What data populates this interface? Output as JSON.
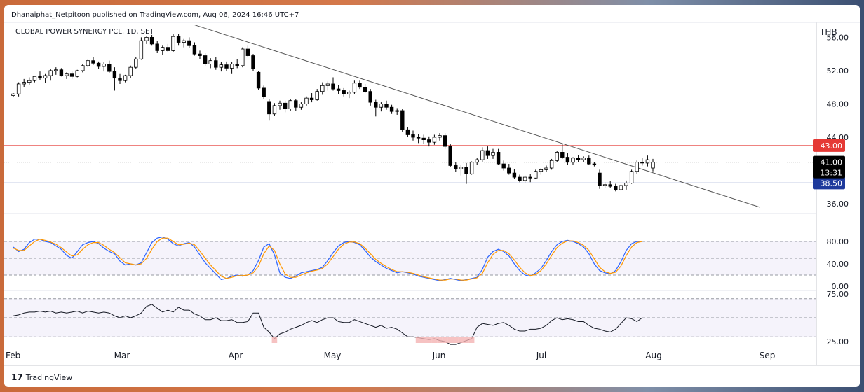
{
  "header": {
    "publisher": "Dhanaiphat_Netpitoon published on TradingView.com, Aug 06, 2024 16:46 UTC+7",
    "symbol": "GLOBAL POWER SYNERGY PCL, 1D, SET",
    "currency": "THB"
  },
  "footer": {
    "brand": "TradingView",
    "logo_icon": "tradingview-logo-icon"
  },
  "colors": {
    "resistance": "#e53935",
    "support": "#1e3a9c",
    "trendline": "#555555",
    "stoch_k": "#2962ff",
    "stoch_d": "#ff9800",
    "rsi": "#131722",
    "band_fill": "#ede9f7"
  },
  "chart_data": [
    {
      "type": "candlestick",
      "title": "GLOBAL POWER SYNERGY PCL, 1D, SET",
      "ylabel": "THB",
      "x_labels": [
        "Feb",
        "Mar",
        "Apr",
        "May",
        "Jun",
        "Jul",
        "Aug",
        "Sep"
      ],
      "ylim": [
        35.0,
        57.8
      ],
      "y_ticks": [
        "56.00",
        "52.00",
        "48.00",
        "44.00",
        "36.00"
      ],
      "levels": [
        {
          "label": "43.00",
          "value": 43.0,
          "color": "#e53935"
        },
        {
          "label": "38.50",
          "value": 38.5,
          "color": "#1e3a9c"
        }
      ],
      "last_price": {
        "value": 41.0,
        "label": "41.00",
        "countdown": "13:31"
      },
      "trendline": {
        "start": {
          "bar": 34,
          "price": 57.5
        },
        "end": {
          "bar": 140,
          "price": 35.6
        }
      },
      "ohlc": [
        [
          49.0,
          49.3,
          48.8,
          49.2
        ],
        [
          49.2,
          50.6,
          48.9,
          50.4
        ],
        [
          50.4,
          51.0,
          50.0,
          50.6
        ],
        [
          50.6,
          51.2,
          50.3,
          50.8
        ],
        [
          50.8,
          51.4,
          50.6,
          51.3
        ],
        [
          51.3,
          51.9,
          50.9,
          51.1
        ],
        [
          51.1,
          51.6,
          50.5,
          51.4
        ],
        [
          51.4,
          52.2,
          50.8,
          52.0
        ],
        [
          52.0,
          52.4,
          51.5,
          52.1
        ],
        [
          52.1,
          52.3,
          51.3,
          51.4
        ],
        [
          51.4,
          51.8,
          51.0,
          51.6
        ],
        [
          51.6,
          51.9,
          51.0,
          51.3
        ],
        [
          51.3,
          52.1,
          51.2,
          52.0
        ],
        [
          52.0,
          52.8,
          51.8,
          52.6
        ],
        [
          52.6,
          53.4,
          52.4,
          53.2
        ],
        [
          53.2,
          53.6,
          52.7,
          52.9
        ],
        [
          52.9,
          53.1,
          52.2,
          52.5
        ],
        [
          52.5,
          53.0,
          51.9,
          52.8
        ],
        [
          52.8,
          53.2,
          51.7,
          51.9
        ],
        [
          51.9,
          52.4,
          49.6,
          51.1
        ],
        [
          51.1,
          51.6,
          50.4,
          50.8
        ],
        [
          50.8,
          51.5,
          50.6,
          51.4
        ],
        [
          51.4,
          52.6,
          51.1,
          52.4
        ],
        [
          52.4,
          53.6,
          52.2,
          53.4
        ],
        [
          53.4,
          56.0,
          53.3,
          55.6
        ],
        [
          55.6,
          56.1,
          55.2,
          56.0
        ],
        [
          56.0,
          56.3,
          55.0,
          55.2
        ],
        [
          55.2,
          55.6,
          54.1,
          54.4
        ],
        [
          54.4,
          55.0,
          53.9,
          54.8
        ],
        [
          54.8,
          55.2,
          54.2,
          54.4
        ],
        [
          54.4,
          56.4,
          54.2,
          56.1
        ],
        [
          56.1,
          56.4,
          55.0,
          55.4
        ],
        [
          55.4,
          55.8,
          54.8,
          55.6
        ],
        [
          55.6,
          56.0,
          54.7,
          55.0
        ],
        [
          55.0,
          55.4,
          53.8,
          54.0
        ],
        [
          54.0,
          54.4,
          53.4,
          53.8
        ],
        [
          53.8,
          54.1,
          52.6,
          52.8
        ],
        [
          52.8,
          53.5,
          52.3,
          53.2
        ],
        [
          53.2,
          53.6,
          52.1,
          52.4
        ],
        [
          52.4,
          53.0,
          51.9,
          52.7
        ],
        [
          52.7,
          53.1,
          52.0,
          52.3
        ],
        [
          52.3,
          53.0,
          51.6,
          52.8
        ],
        [
          52.8,
          53.4,
          52.3,
          52.6
        ],
        [
          52.6,
          54.8,
          52.4,
          54.6
        ],
        [
          54.6,
          55.0,
          53.6,
          53.8
        ],
        [
          53.8,
          54.0,
          52.0,
          52.2
        ],
        [
          51.8,
          52.0,
          49.7,
          49.9
        ],
        [
          49.9,
          50.2,
          48.6,
          48.9
        ],
        [
          48.3,
          48.6,
          46.0,
          46.8
        ],
        [
          46.8,
          48.1,
          46.6,
          47.8
        ],
        [
          47.8,
          48.4,
          47.3,
          48.1
        ],
        [
          48.1,
          48.4,
          47.0,
          47.4
        ],
        [
          47.4,
          48.6,
          47.2,
          48.4
        ],
        [
          48.4,
          48.6,
          47.2,
          47.6
        ],
        [
          47.6,
          48.2,
          47.3,
          48.0
        ],
        [
          48.0,
          48.9,
          47.8,
          48.7
        ],
        [
          48.7,
          49.3,
          48.2,
          48.5
        ],
        [
          48.5,
          49.8,
          48.4,
          49.5
        ],
        [
          49.5,
          50.6,
          49.1,
          50.2
        ],
        [
          50.2,
          50.7,
          49.6,
          50.4
        ],
        [
          50.4,
          51.2,
          49.6,
          49.8
        ],
        [
          49.8,
          50.3,
          49.2,
          49.6
        ],
        [
          49.6,
          49.9,
          48.9,
          49.2
        ],
        [
          49.2,
          49.6,
          48.7,
          49.4
        ],
        [
          49.4,
          50.8,
          49.2,
          50.5
        ],
        [
          50.5,
          50.8,
          49.8,
          50.0
        ],
        [
          50.0,
          50.4,
          49.3,
          49.5
        ],
        [
          49.5,
          49.8,
          47.8,
          48.2
        ],
        [
          48.2,
          48.5,
          46.5,
          47.6
        ],
        [
          47.6,
          48.2,
          47.1,
          48.0
        ],
        [
          48.0,
          48.4,
          47.3,
          47.6
        ],
        [
          47.6,
          47.9,
          46.8,
          47.1
        ],
        [
          47.1,
          47.5,
          46.7,
          47.2
        ],
        [
          47.2,
          47.4,
          44.6,
          44.9
        ],
        [
          44.9,
          45.2,
          44.0,
          44.3
        ],
        [
          44.3,
          44.8,
          43.6,
          44.0
        ],
        [
          44.0,
          44.4,
          43.3,
          43.9
        ],
        [
          43.9,
          44.3,
          43.2,
          43.7
        ],
        [
          43.7,
          44.1,
          42.9,
          43.4
        ],
        [
          43.4,
          44.3,
          43.1,
          44.0
        ],
        [
          44.0,
          44.5,
          43.6,
          44.2
        ],
        [
          44.2,
          44.5,
          42.6,
          42.9
        ],
        [
          42.9,
          43.2,
          40.4,
          40.6
        ],
        [
          40.6,
          41.0,
          39.8,
          40.2
        ],
        [
          40.2,
          40.7,
          39.4,
          40.4
        ],
        [
          40.4,
          40.9,
          38.4,
          39.6
        ],
        [
          39.6,
          41.1,
          39.5,
          41.0
        ],
        [
          41.0,
          41.5,
          40.7,
          41.3
        ],
        [
          41.3,
          42.8,
          41.0,
          42.4
        ],
        [
          42.4,
          42.9,
          41.4,
          41.8
        ],
        [
          41.8,
          42.6,
          41.4,
          42.2
        ],
        [
          42.2,
          42.6,
          40.7,
          40.8
        ],
        [
          40.8,
          41.2,
          40.0,
          40.3
        ],
        [
          40.3,
          40.8,
          39.5,
          39.7
        ],
        [
          39.7,
          40.2,
          39.0,
          39.2
        ],
        [
          39.2,
          39.5,
          38.6,
          38.8
        ],
        [
          38.8,
          39.4,
          38.5,
          39.2
        ],
        [
          39.2,
          39.6,
          38.6,
          39.1
        ],
        [
          39.1,
          40.1,
          39.0,
          39.9
        ],
        [
          39.9,
          40.3,
          39.5,
          40.1
        ],
        [
          40.1,
          40.6,
          39.8,
          40.3
        ],
        [
          40.3,
          41.4,
          40.1,
          41.2
        ],
        [
          41.2,
          42.4,
          41.0,
          42.2
        ],
        [
          42.2,
          43.2,
          41.4,
          41.6
        ],
        [
          41.6,
          42.1,
          40.7,
          41.0
        ],
        [
          41.0,
          41.6,
          40.7,
          41.5
        ],
        [
          41.5,
          41.9,
          41.0,
          41.3
        ],
        [
          41.3,
          41.7,
          41.0,
          41.5
        ],
        [
          41.5,
          41.8,
          40.7,
          40.8
        ],
        [
          40.8,
          41.0,
          40.5,
          40.7
        ],
        [
          39.7,
          40.1,
          37.8,
          38.2
        ],
        [
          38.2,
          38.6,
          37.9,
          38.3
        ],
        [
          38.3,
          38.7,
          37.9,
          38.1
        ],
        [
          38.1,
          38.4,
          37.5,
          37.7
        ],
        [
          37.7,
          38.3,
          37.6,
          38.2
        ],
        [
          38.2,
          38.8,
          37.7,
          38.5
        ],
        [
          38.5,
          40.1,
          38.4,
          39.9
        ],
        [
          39.9,
          41.2,
          39.6,
          41.0
        ],
        [
          41.0,
          41.5,
          40.6,
          40.9
        ],
        [
          40.9,
          41.8,
          40.5,
          41.3
        ],
        [
          40.3,
          41.4,
          39.9,
          41.0
        ]
      ],
      "gaps": [
        [
          45,
          46
        ],
        [
          47,
          48
        ],
        [
          110,
          111
        ],
        [
          121,
          122
        ]
      ]
    },
    {
      "type": "line",
      "indicator": "stochastic",
      "y_ticks": [
        "80.00",
        "40.00",
        "0.00"
      ],
      "ylim": [
        0,
        100
      ],
      "bands": {
        "upper": 80,
        "middle": 50,
        "lower": 20
      },
      "series": [
        {
          "role": "k",
          "values": [
            70,
            62,
            66,
            78,
            84,
            84,
            80,
            78,
            72,
            66,
            55,
            50,
            62,
            74,
            78,
            80,
            76,
            68,
            62,
            58,
            45,
            38,
            40,
            38,
            42,
            60,
            78,
            86,
            88,
            84,
            76,
            72,
            76,
            78,
            70,
            56,
            42,
            32,
            22,
            12,
            14,
            18,
            20,
            18,
            20,
            28,
            46,
            70,
            76,
            56,
            24,
            16,
            14,
            18,
            24,
            26,
            28,
            30,
            34,
            46,
            60,
            72,
            78,
            80,
            78,
            74,
            64,
            52,
            44,
            38,
            32,
            28,
            24,
            26,
            24,
            22,
            18,
            16,
            14,
            12,
            10,
            12,
            14,
            12,
            10,
            12,
            14,
            16,
            30,
            52,
            62,
            66,
            62,
            54,
            40,
            28,
            20,
            18,
            24,
            32,
            46,
            62,
            74,
            80,
            82,
            80,
            76,
            70,
            58,
            40,
            28,
            24,
            22,
            28,
            44,
            64,
            76,
            80,
            80
          ]
        },
        {
          "role": "d",
          "values": [
            68,
            64,
            64,
            72,
            80,
            84,
            82,
            79,
            75,
            69,
            61,
            54,
            56,
            66,
            74,
            78,
            78,
            73,
            66,
            60,
            51,
            42,
            40,
            38,
            40,
            50,
            66,
            80,
            86,
            86,
            80,
            74,
            75,
            77,
            74,
            63,
            50,
            38,
            28,
            18,
            14,
            16,
            19,
            19,
            20,
            24,
            36,
            58,
            72,
            64,
            40,
            22,
            16,
            16,
            20,
            24,
            27,
            29,
            32,
            40,
            53,
            66,
            75,
            79,
            79,
            76,
            68,
            58,
            48,
            41,
            35,
            30,
            26,
            26,
            25,
            23,
            20,
            17,
            15,
            13,
            11,
            11,
            13,
            13,
            11,
            11,
            13,
            15,
            23,
            42,
            57,
            64,
            64,
            58,
            47,
            34,
            24,
            19,
            21,
            28,
            40,
            55,
            69,
            77,
            81,
            81,
            78,
            73,
            64,
            49,
            34,
            26,
            23,
            25,
            36,
            55,
            70,
            78,
            80
          ]
        }
      ]
    },
    {
      "type": "line",
      "indicator": "rsi",
      "y_ticks": [
        "75.00",
        "25.00"
      ],
      "ylim": [
        25,
        75
      ],
      "bands": {
        "upper": 70,
        "middle": 50,
        "lower": 30
      },
      "series": [
        {
          "role": "rsi",
          "values": [
            52,
            53,
            55,
            56,
            56,
            57,
            56,
            57,
            55,
            56,
            55,
            56,
            57,
            55,
            57,
            56,
            55,
            56,
            55,
            52,
            50,
            52,
            50,
            52,
            55,
            62,
            64,
            60,
            56,
            58,
            56,
            61,
            58,
            58,
            54,
            52,
            48,
            48,
            50,
            47,
            47,
            48,
            45,
            45,
            46,
            55,
            55,
            40,
            35,
            28,
            33,
            35,
            38,
            40,
            42,
            45,
            47,
            45,
            48,
            50,
            50,
            46,
            45,
            45,
            48,
            46,
            44,
            42,
            40,
            42,
            39,
            40,
            38,
            34,
            30,
            30,
            29,
            28,
            27,
            28,
            26,
            25,
            22,
            22,
            24,
            26,
            28,
            40,
            44,
            43,
            42,
            44,
            45,
            42,
            38,
            36,
            36,
            38,
            38,
            39,
            42,
            47,
            50,
            48,
            49,
            48,
            46,
            46,
            42,
            39,
            38,
            36,
            35,
            38,
            44,
            50,
            49,
            46,
            50
          ]
        }
      ]
    }
  ]
}
